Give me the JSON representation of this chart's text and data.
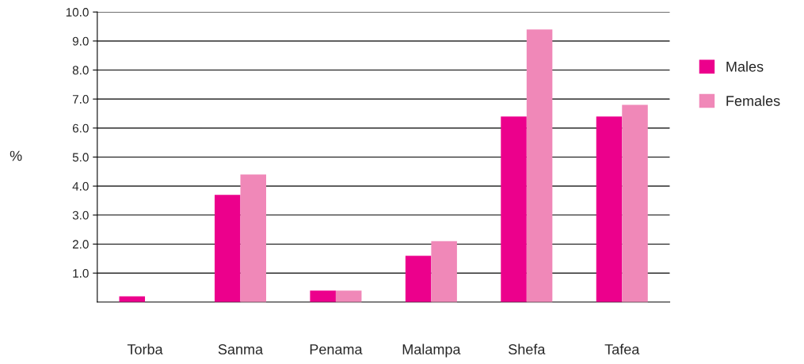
{
  "chart_data": {
    "type": "bar",
    "ylabel": "%",
    "categories": [
      "Torba",
      "Sanma",
      "Penama",
      "Malampa",
      "Shefa",
      "Tafea"
    ],
    "series": [
      {
        "name": "Males",
        "color": "#ec008c",
        "values": [
          0.2,
          3.7,
          0.4,
          1.6,
          6.4,
          6.4
        ]
      },
      {
        "name": "Females",
        "color": "#f088b8",
        "values": [
          null,
          4.4,
          0.4,
          2.1,
          9.4,
          6.8
        ]
      }
    ],
    "ylim": [
      0,
      10
    ],
    "yticks": [
      {
        "value": 1,
        "label": "1.0"
      },
      {
        "value": 2,
        "label": "2.0"
      },
      {
        "value": 3,
        "label": "3.0"
      },
      {
        "value": 4,
        "label": "4.0"
      },
      {
        "value": 5,
        "label": "5.0"
      },
      {
        "value": 6,
        "label": "6.0"
      },
      {
        "value": 7,
        "label": "7.0"
      },
      {
        "value": 8,
        "label": "8.0"
      },
      {
        "value": 9,
        "label": "9.0"
      },
      {
        "value": 10,
        "label": "10.0"
      }
    ],
    "grid": "y",
    "legend": "right"
  }
}
